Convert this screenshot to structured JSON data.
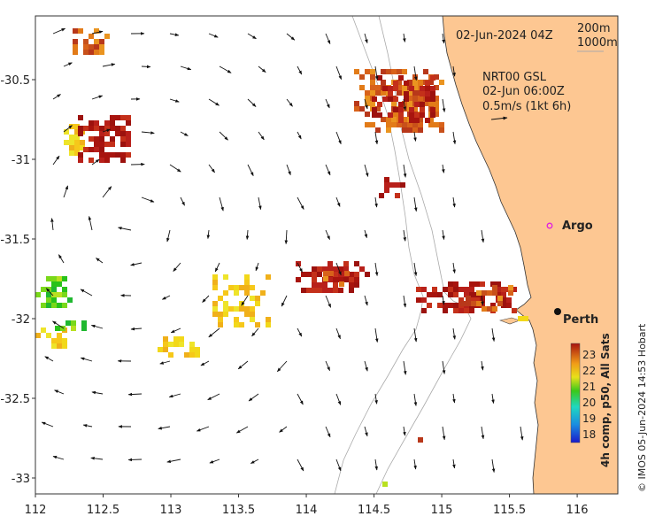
{
  "map": {
    "date_label": "02-Jun-2024 04Z",
    "isobath_labels": [
      "200m",
      "1000m"
    ],
    "current_title": "NRT00 GSL",
    "current_time": "02-Jun 06:00Z",
    "current_scale": "0.5m/s (1kt 6h)",
    "places": [
      {
        "name": "Argo",
        "lon": 115.78,
        "lat": -31.46,
        "marker": "argo"
      },
      {
        "name": "Perth",
        "lon": 115.86,
        "lat": -31.95,
        "marker": "city"
      }
    ],
    "x_ticks": [
      "112",
      "112.5",
      "113",
      "113.5",
      "114",
      "114.5",
      "115",
      "115.5",
      "116"
    ],
    "y_ticks": [
      "-30.5",
      "-31",
      "-31.5",
      "-32",
      "-32.5",
      "-33"
    ],
    "lon_range": [
      112,
      116.3
    ],
    "lat_range": [
      -33.1,
      -30.1
    ]
  },
  "colorbar": {
    "ticks": [
      "23",
      "22",
      "21",
      "20",
      "19",
      "18"
    ],
    "label": "4h comp, p50, All Sats"
  },
  "credit": "© IMOS 05-Jun-2024 14:53 Hobart",
  "colors": {
    "land": "#fdc792",
    "sst_high": "#b01c10",
    "sst_mid": "#e27b18",
    "sst_low": "#f2d81a",
    "green": "#28c21a"
  }
}
